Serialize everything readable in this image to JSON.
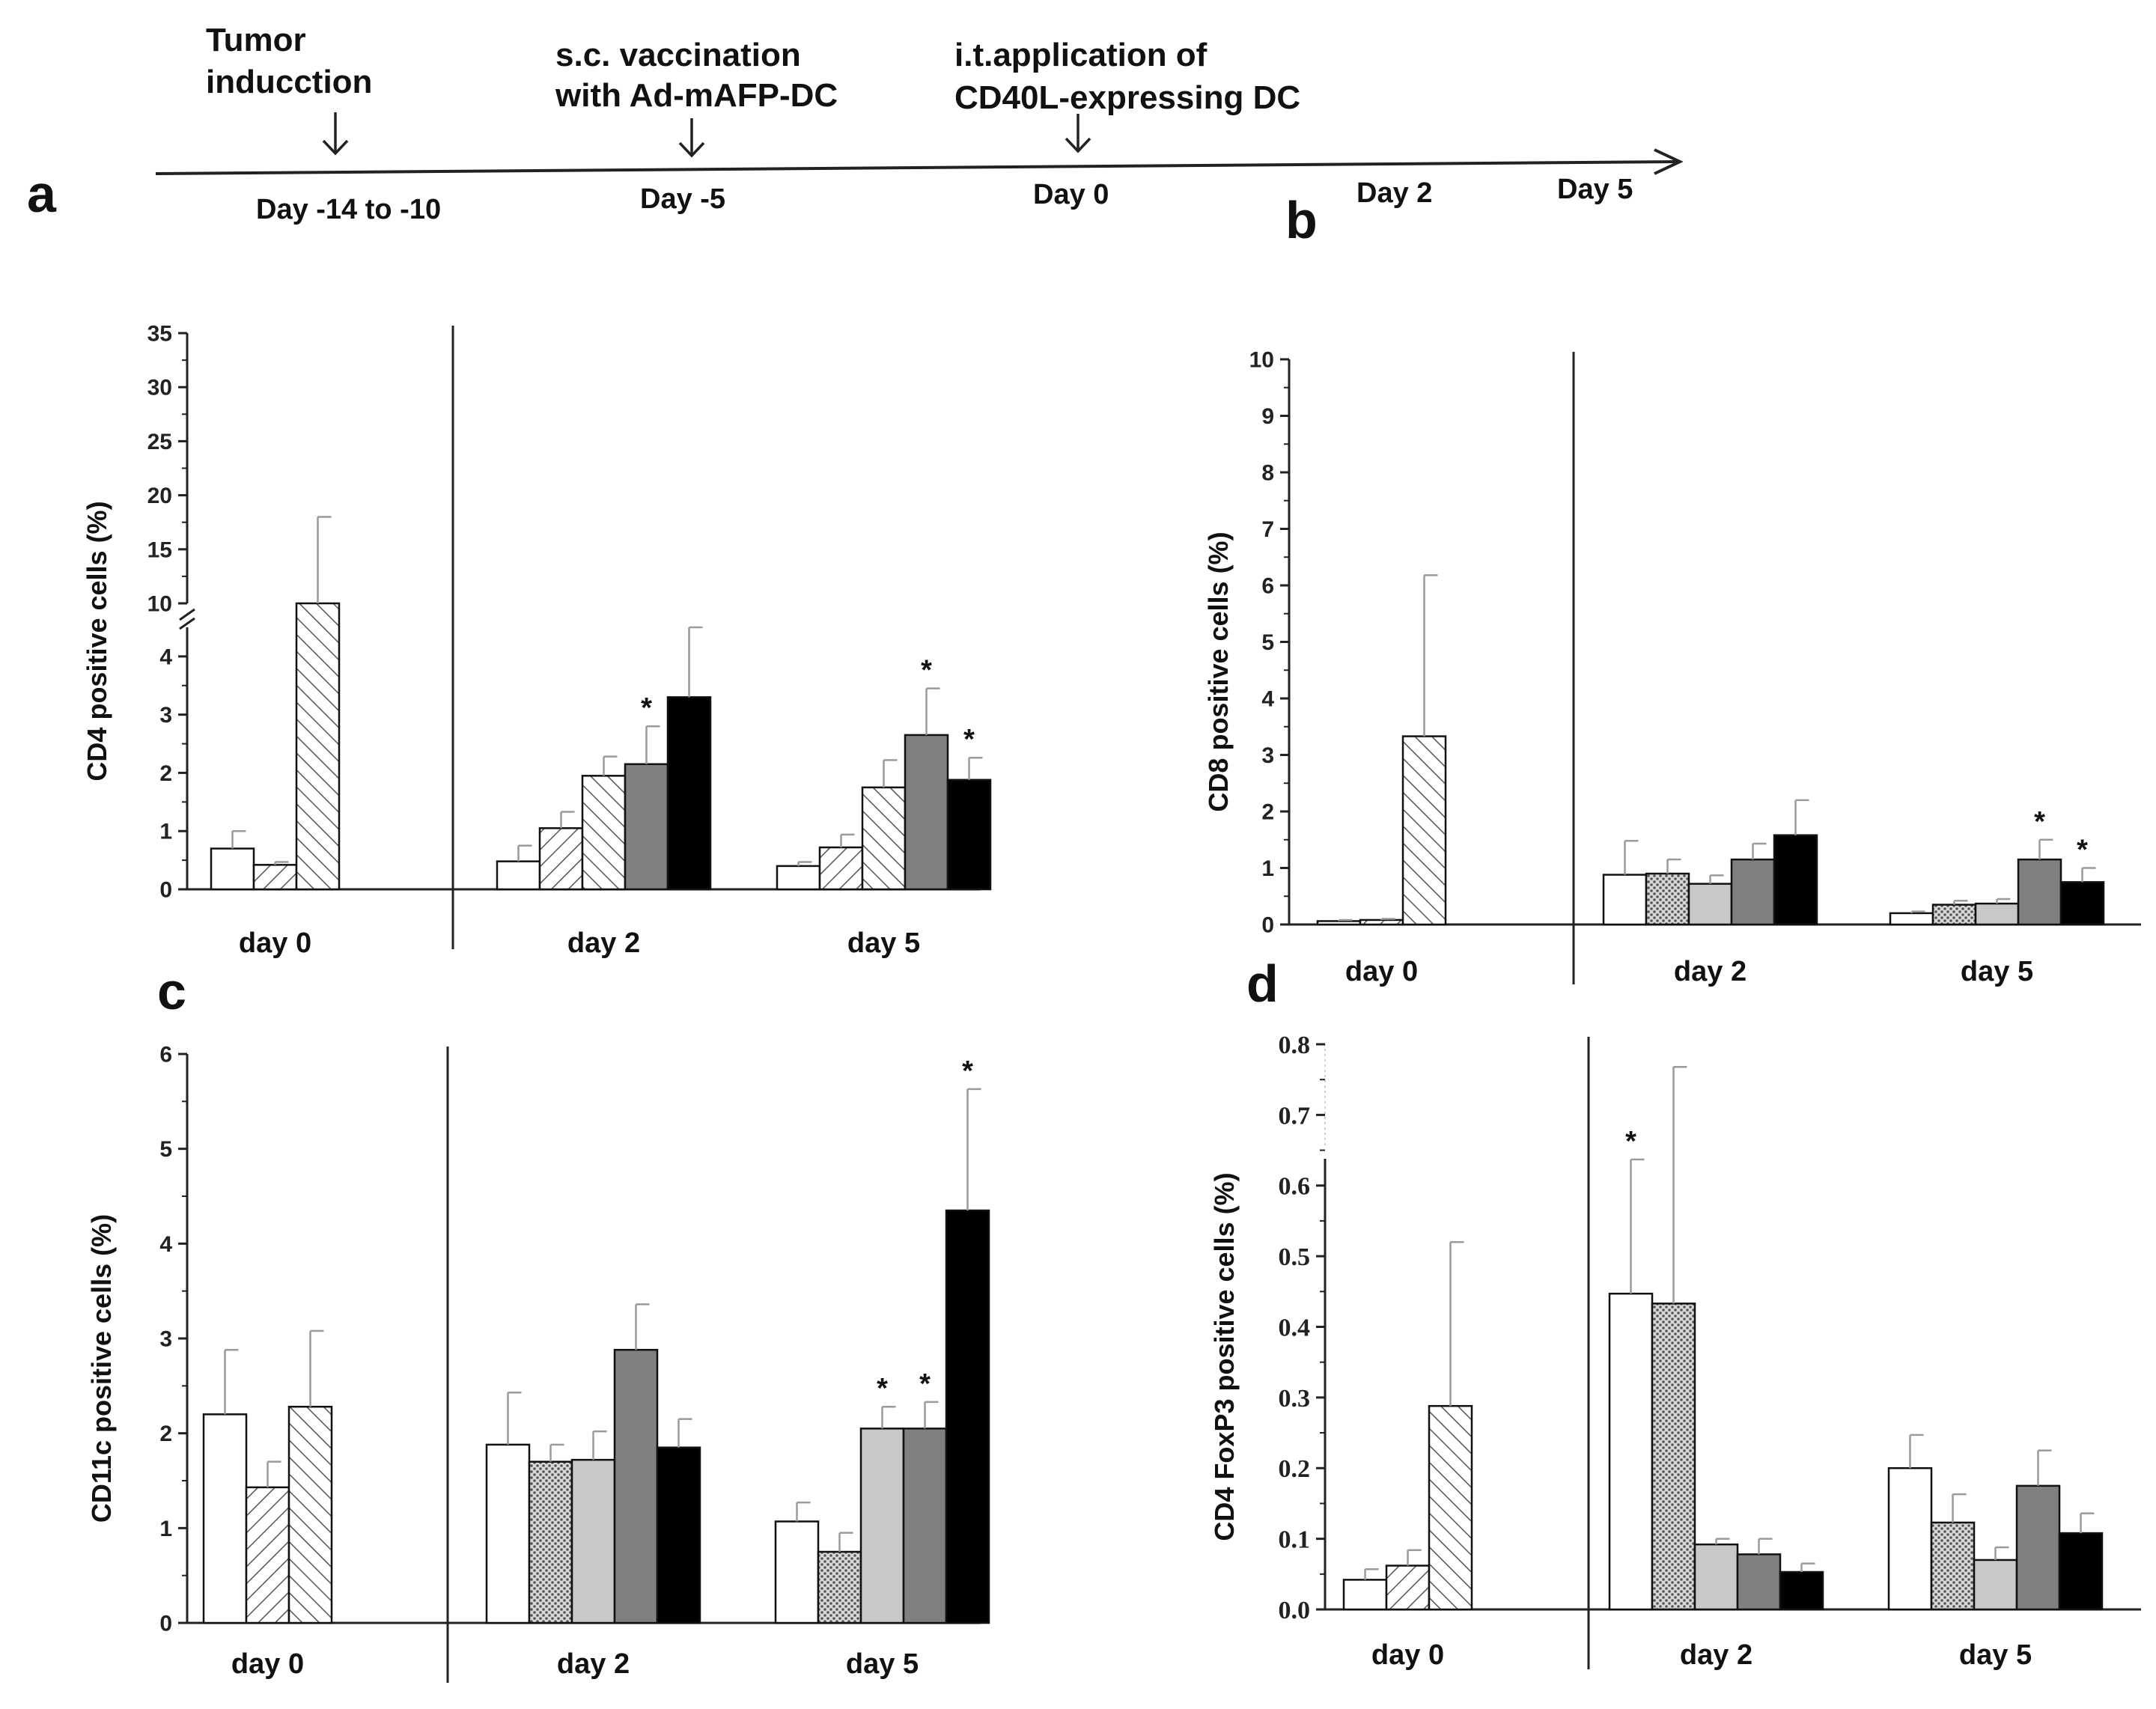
{
  "timeline": {
    "events": [
      {
        "label_lines": [
          "Tumor",
          "inducction"
        ]
      },
      {
        "label_lines": [
          "s.c. vaccination",
          "with Ad-mAFP-DC"
        ]
      },
      {
        "label_lines": [
          "i.t.application of",
          "CD40L-expressing DC"
        ]
      }
    ],
    "days": [
      "Day -14 to -10",
      "Day -5",
      "Day 0",
      "Day 2",
      "Day 5"
    ]
  },
  "panel_letters": [
    "a",
    "b",
    "c",
    "d"
  ],
  "colors": {
    "white": "#ffffff",
    "dotted": "#b8b8b8",
    "light_gray": "#c8c8c8",
    "dark_gray": "#808080",
    "black": "#000000",
    "hatch_line": "#555555",
    "axis": "#222222",
    "error_bar": "#9a9a9a"
  },
  "chart_data": [
    {
      "type": "bar",
      "panel": "a",
      "ylabel": "CD4 positive cells (%)",
      "yaxis_break": {
        "below": 4.5,
        "above": 10
      },
      "lower_ticks": [
        "0",
        "1",
        "2",
        "3",
        "4"
      ],
      "upper_ticks": [
        "10",
        "15",
        "20",
        "25",
        "30",
        "35"
      ],
      "groups": [
        {
          "label": "day 0",
          "bars": [
            {
              "fill": "white",
              "value": 0.7,
              "err": 0.3
            },
            {
              "fill": "hatch_right",
              "value": 0.42,
              "err": 0.05
            },
            {
              "fill": "hatch_left",
              "value": 10.0,
              "err": 8.0
            }
          ]
        },
        {
          "label": "day 2",
          "bars": [
            {
              "fill": "white",
              "value": 0.48,
              "err": 0.27
            },
            {
              "fill": "hatch_right",
              "value": 1.05,
              "err": 0.28
            },
            {
              "fill": "hatch_left",
              "value": 1.95,
              "err": 0.33
            },
            {
              "fill": "dark_gray",
              "value": 2.15,
              "err": 0.65,
              "sig": "*"
            },
            {
              "fill": "black",
              "value": 3.3,
              "err": 1.5
            }
          ]
        },
        {
          "label": "day 5",
          "bars": [
            {
              "fill": "white",
              "value": 0.4,
              "err": 0.07
            },
            {
              "fill": "hatch_right",
              "value": 0.72,
              "err": 0.22
            },
            {
              "fill": "hatch_left",
              "value": 1.75,
              "err": 0.47
            },
            {
              "fill": "dark_gray",
              "value": 2.65,
              "err": 0.8,
              "sig": "*"
            },
            {
              "fill": "black",
              "value": 1.88,
              "err": 0.38,
              "sig": "*"
            }
          ]
        }
      ]
    },
    {
      "type": "bar",
      "panel": "b",
      "ylabel": "CD8 positive cells (%)",
      "ylim": [
        0,
        10
      ],
      "ticks": [
        "0",
        "1",
        "2",
        "3",
        "4",
        "5",
        "6",
        "7",
        "8",
        "9",
        "10"
      ],
      "groups": [
        {
          "label": "day 0",
          "bars": [
            {
              "fill": "white",
              "value": 0.06,
              "err": 0.02
            },
            {
              "fill": "hatch_right",
              "value": 0.08,
              "err": 0.02
            },
            {
              "fill": "hatch_left",
              "value": 3.33,
              "err": 2.85
            }
          ]
        },
        {
          "label": "day 2",
          "bars": [
            {
              "fill": "white",
              "value": 0.88,
              "err": 0.6
            },
            {
              "fill": "dotted",
              "value": 0.9,
              "err": 0.25
            },
            {
              "fill": "light_gray",
              "value": 0.72,
              "err": 0.15
            },
            {
              "fill": "dark_gray",
              "value": 1.15,
              "err": 0.28
            },
            {
              "fill": "black",
              "value": 1.58,
              "err": 0.62
            }
          ]
        },
        {
          "label": "day 5",
          "bars": [
            {
              "fill": "white",
              "value": 0.2,
              "err": 0.03
            },
            {
              "fill": "dotted",
              "value": 0.35,
              "err": 0.07
            },
            {
              "fill": "light_gray",
              "value": 0.37,
              "err": 0.08
            },
            {
              "fill": "dark_gray",
              "value": 1.15,
              "err": 0.35,
              "sig": "*"
            },
            {
              "fill": "black",
              "value": 0.75,
              "err": 0.25,
              "sig": "*"
            }
          ]
        }
      ]
    },
    {
      "type": "bar",
      "panel": "c",
      "ylabel": "CD11c positive cells (%)",
      "ylim": [
        0,
        6
      ],
      "ticks": [
        "0",
        "1",
        "2",
        "3",
        "4",
        "5",
        "6"
      ],
      "groups": [
        {
          "label": "day 0",
          "bars": [
            {
              "fill": "white",
              "value": 2.2,
              "err": 0.68
            },
            {
              "fill": "hatch_right",
              "value": 1.43,
              "err": 0.27
            },
            {
              "fill": "hatch_left",
              "value": 2.28,
              "err": 0.8
            }
          ]
        },
        {
          "label": "day 2",
          "bars": [
            {
              "fill": "white",
              "value": 1.88,
              "err": 0.55
            },
            {
              "fill": "dotted",
              "value": 1.7,
              "err": 0.18
            },
            {
              "fill": "light_gray",
              "value": 1.72,
              "err": 0.3
            },
            {
              "fill": "dark_gray",
              "value": 2.88,
              "err": 0.48
            },
            {
              "fill": "black",
              "value": 1.85,
              "err": 0.3
            }
          ]
        },
        {
          "label": "day 5",
          "bars": [
            {
              "fill": "white",
              "value": 1.07,
              "err": 0.2
            },
            {
              "fill": "dotted",
              "value": 0.75,
              "err": 0.2
            },
            {
              "fill": "light_gray",
              "value": 2.05,
              "err": 0.23,
              "sig": "*"
            },
            {
              "fill": "dark_gray",
              "value": 2.05,
              "err": 0.28,
              "sig": "*"
            },
            {
              "fill": "black",
              "value": 4.35,
              "err": 1.28,
              "sig": "*"
            }
          ]
        }
      ]
    },
    {
      "type": "bar",
      "panel": "d",
      "ylabel": "CD4 FoxP3 positive cells (%)",
      "ylim": [
        0,
        0.8
      ],
      "ticks": [
        "0.0",
        "0.1",
        "0.2",
        "0.3",
        "0.4",
        "0.5",
        "0.6",
        "0.7",
        "0.8"
      ],
      "groups": [
        {
          "label": "day 0",
          "bars": [
            {
              "fill": "white",
              "value": 0.042,
              "err": 0.015
            },
            {
              "fill": "hatch_right",
              "value": 0.062,
              "err": 0.022
            },
            {
              "fill": "hatch_left",
              "value": 0.288,
              "err": 0.232
            }
          ]
        },
        {
          "label": "day 2",
          "bars": [
            {
              "fill": "white",
              "value": 0.447,
              "err": 0.19,
              "sig": "*"
            },
            {
              "fill": "dotted",
              "value": 0.433,
              "err": 0.335
            },
            {
              "fill": "light_gray",
              "value": 0.092,
              "err": 0.008
            },
            {
              "fill": "dark_gray",
              "value": 0.078,
              "err": 0.022
            },
            {
              "fill": "black",
              "value": 0.053,
              "err": 0.012
            }
          ]
        },
        {
          "label": "day 5",
          "bars": [
            {
              "fill": "white",
              "value": 0.2,
              "err": 0.047
            },
            {
              "fill": "dotted",
              "value": 0.123,
              "err": 0.04
            },
            {
              "fill": "light_gray",
              "value": 0.07,
              "err": 0.018
            },
            {
              "fill": "dark_gray",
              "value": 0.175,
              "err": 0.05
            },
            {
              "fill": "black",
              "value": 0.108,
              "err": 0.028
            }
          ]
        }
      ]
    }
  ]
}
